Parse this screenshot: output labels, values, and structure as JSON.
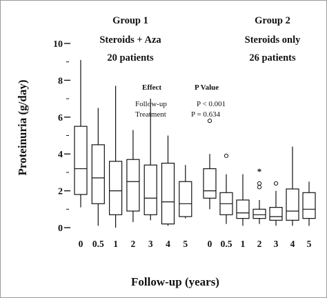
{
  "chart_data": {
    "type": "boxplot",
    "title": "",
    "xlabel": "Follow-up (years)",
    "ylabel": "Proteinuria (g/day)",
    "ylim": [
      0,
      10
    ],
    "y_ticks": [
      "0",
      "2",
      "4",
      "6",
      "8",
      "10"
    ],
    "grid": false,
    "groups": [
      {
        "title_lines": [
          "Group 1",
          "Steroids + Aza",
          "20 patients"
        ],
        "categories": [
          "0",
          "0.5",
          "1",
          "2",
          "3",
          "4",
          "5"
        ],
        "boxes": [
          {
            "min": 1.1,
            "q1": 1.8,
            "median": 3.2,
            "q3": 5.5,
            "max": 9.1,
            "outliers": []
          },
          {
            "min": 0.1,
            "q1": 1.3,
            "median": 2.7,
            "q3": 4.5,
            "max": 6.5,
            "outliers": []
          },
          {
            "min": 0.0,
            "q1": 0.7,
            "median": 2.0,
            "q3": 3.6,
            "max": 7.7,
            "outliers": []
          },
          {
            "min": 0.3,
            "q1": 0.9,
            "median": 2.5,
            "q3": 3.7,
            "max": 5.3,
            "outliers": []
          },
          {
            "min": 0.4,
            "q1": 0.7,
            "median": 1.6,
            "q3": 3.4,
            "max": 7.0,
            "outliers": []
          },
          {
            "min": 0.1,
            "q1": 0.2,
            "median": 1.4,
            "q3": 3.5,
            "max": 5.0,
            "outliers": []
          },
          {
            "min": 0.5,
            "q1": 0.6,
            "median": 1.3,
            "q3": 2.5,
            "max": 3.4,
            "outliers": []
          }
        ]
      },
      {
        "title_lines": [
          "Group 2",
          "Steroids only",
          "26 patients"
        ],
        "categories": [
          "0",
          "0.5",
          "1",
          "2",
          "3",
          "4",
          "5"
        ],
        "boxes": [
          {
            "min": 1.0,
            "q1": 1.6,
            "median": 2.0,
            "q3": 3.2,
            "max": 4.0,
            "outliers": [
              {
                "v": 5.8,
                "m": "o"
              }
            ]
          },
          {
            "min": 0.2,
            "q1": 0.7,
            "median": 1.3,
            "q3": 1.9,
            "max": 2.9,
            "outliers": [
              {
                "v": 3.9,
                "m": "o"
              }
            ]
          },
          {
            "min": 0.1,
            "q1": 0.5,
            "median": 0.8,
            "q3": 1.5,
            "max": 2.9,
            "outliers": []
          },
          {
            "min": 0.2,
            "q1": 0.5,
            "median": 0.7,
            "q3": 1.0,
            "max": 1.5,
            "outliers": [
              {
                "v": 2.2,
                "m": "o"
              },
              {
                "v": 2.4,
                "m": "o"
              },
              {
                "v": 3.1,
                "m": "*"
              }
            ]
          },
          {
            "min": 0.1,
            "q1": 0.4,
            "median": 0.6,
            "q3": 1.1,
            "max": 2.0,
            "outliers": [
              {
                "v": 2.4,
                "m": "o"
              }
            ]
          },
          {
            "min": 0.1,
            "q1": 0.4,
            "median": 0.9,
            "q3": 2.1,
            "max": 4.4,
            "outliers": []
          },
          {
            "min": 0.1,
            "q1": 0.5,
            "median": 1.0,
            "q3": 1.9,
            "max": 2.5,
            "outliers": []
          }
        ]
      }
    ],
    "stats_table": {
      "header": [
        "Effect",
        "P Value"
      ],
      "rows": [
        [
          "Follow-up",
          "P < 0.001"
        ],
        [
          "Treatment",
          "P = 0.634"
        ]
      ]
    }
  }
}
